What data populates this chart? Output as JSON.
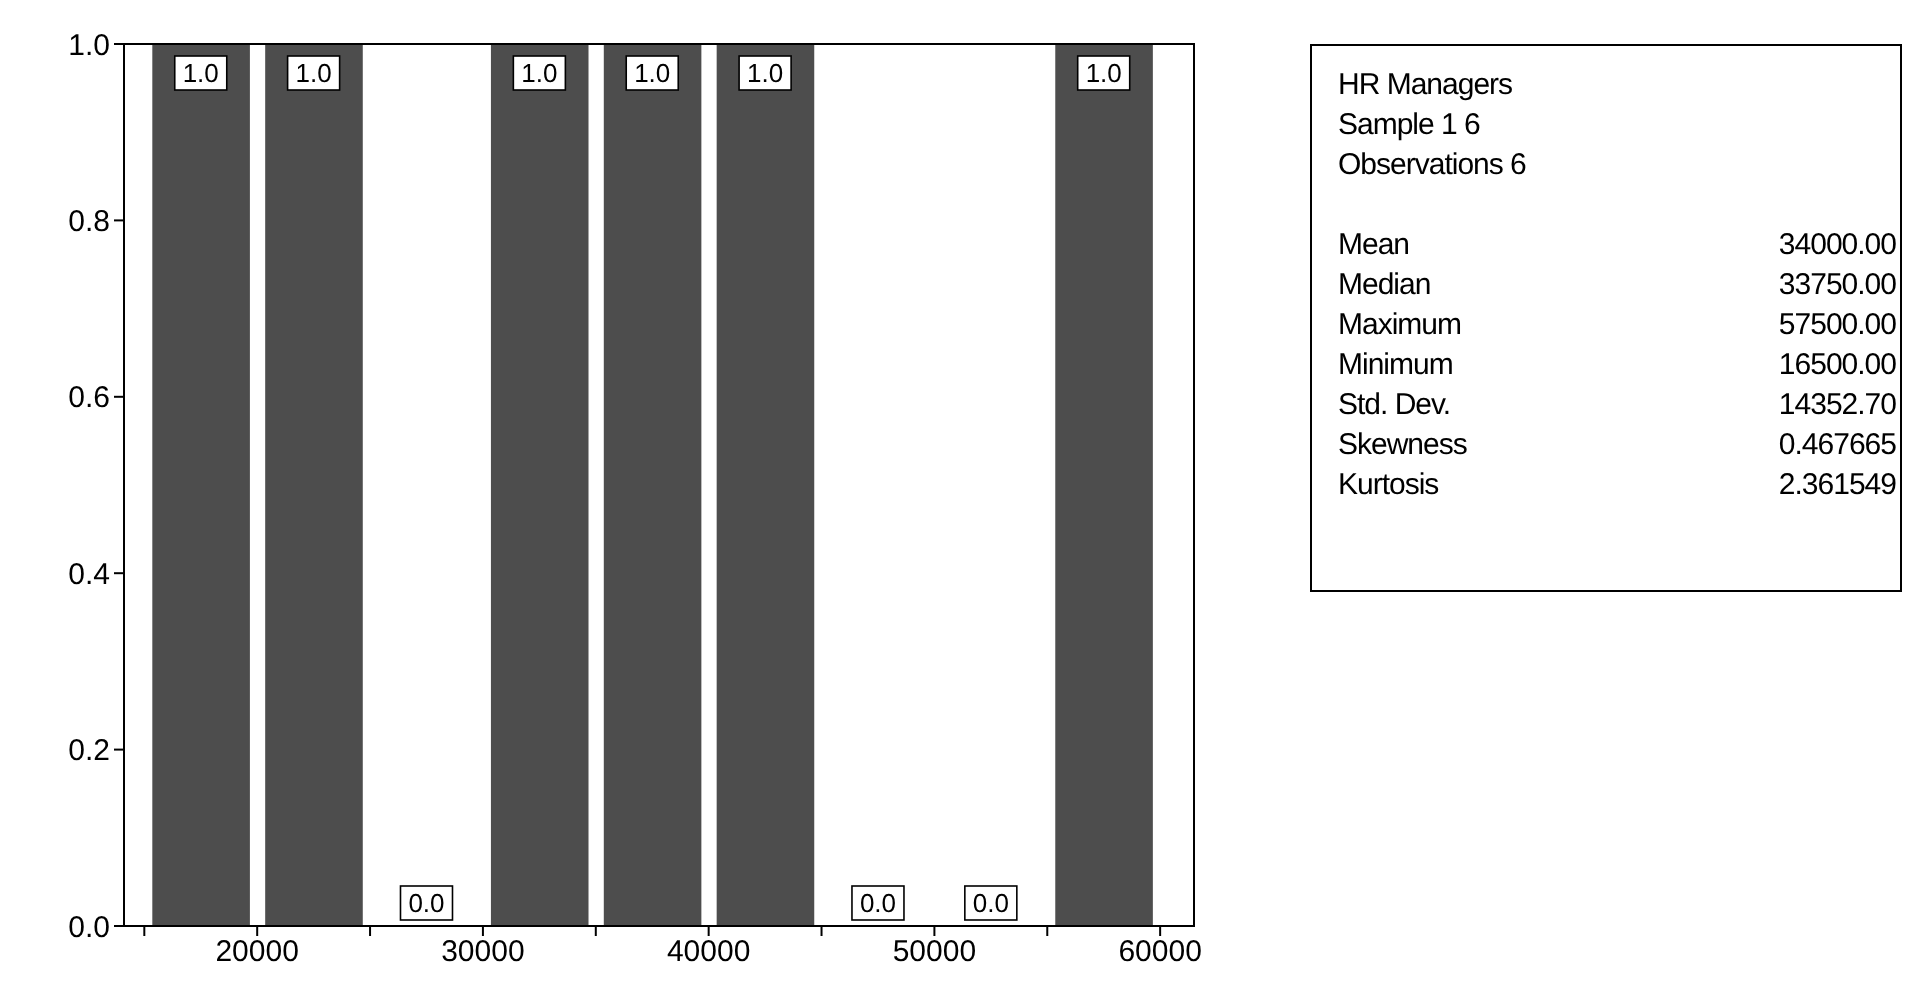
{
  "chart_data": [
    {
      "type": "histogram",
      "bins": [
        15000,
        20000,
        25000,
        30000,
        35000,
        40000,
        45000,
        50000,
        55000,
        60000
      ],
      "values": [
        1,
        1,
        0,
        1,
        1,
        1,
        0,
        0,
        1
      ],
      "value_labels": [
        "1.0",
        "1.0",
        "0.0",
        "1.0",
        "1.0",
        "1.0",
        "0.0",
        "0.0",
        "1.0"
      ],
      "color": "#4d4d4d",
      "xlim": [
        14100,
        61500
      ],
      "xticks": [
        {
          "value": 15000,
          "label": null
        },
        20000,
        {
          "value": 25000,
          "label": null
        },
        30000,
        {
          "value": 35000,
          "label": null
        },
        40000,
        {
          "value": 45000,
          "label": null
        },
        50000,
        {
          "value": 55000,
          "label": null
        },
        60000
      ],
      "ylim": [
        0,
        1
      ],
      "yticks": [
        {
          "value": 0,
          "label": "0.0"
        },
        {
          "value": 0.2,
          "label": "0.2"
        },
        {
          "value": 0.4,
          "label": "0.4"
        },
        {
          "value": 0.6,
          "label": "0.6"
        },
        {
          "value": 0.8,
          "label": "0.8"
        },
        {
          "value": 1,
          "label": "1.0"
        }
      ],
      "grid": false,
      "legend": false
    },
    {
      "type": "other",
      "title": "HR Managers",
      "annotations": [
        "Sample 1 6",
        "Observations 6"
      ],
      "categories": [
        "Mean",
        "Median",
        "Maximum",
        "Minimum",
        "Std. Dev.",
        "Skewness",
        "Kurtosis"
      ],
      "values": [
        34000,
        33750,
        57500,
        16500,
        14352.7,
        0.467665,
        2.361549
      ],
      "value_labels": [
        "34000.00",
        "33750.00",
        "57500.00",
        "16500.00",
        "14352.70",
        "0.467665",
        "2.361549"
      ]
    }
  ]
}
